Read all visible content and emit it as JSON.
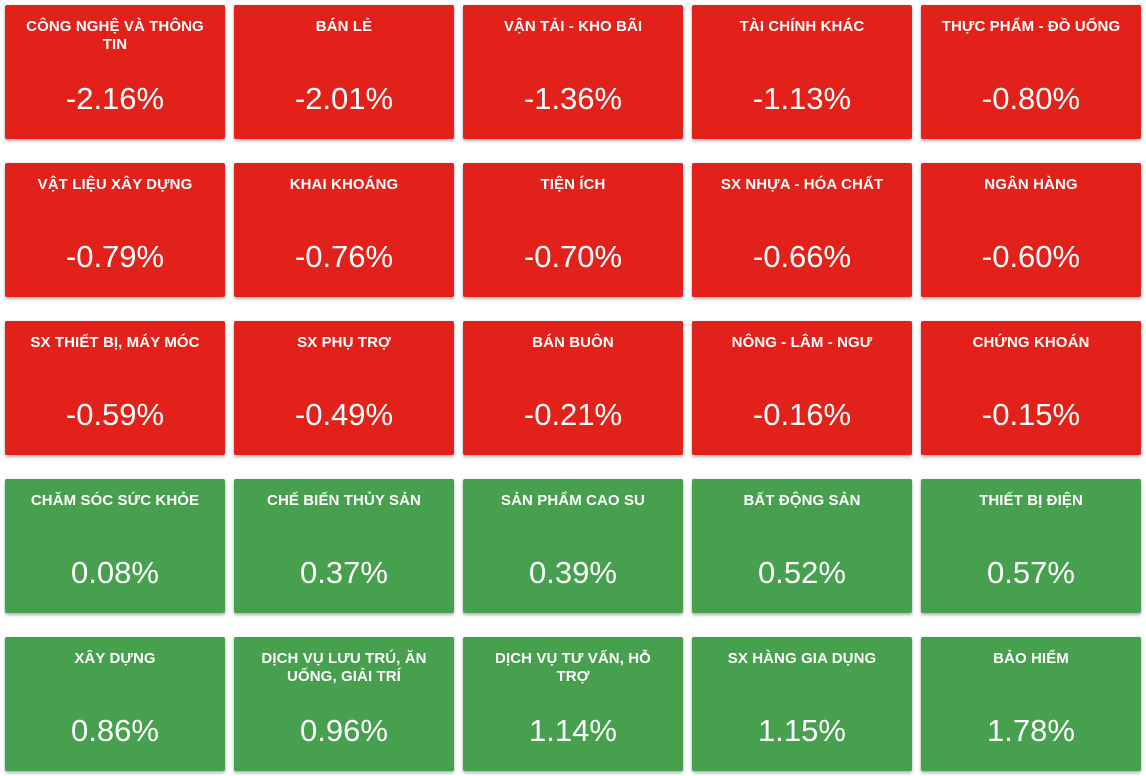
{
  "board": {
    "columns": 5,
    "rows": 5,
    "text_color": "#ffffff",
    "tile_colors": {
      "negative": "#e2221a",
      "positive": "#46a04e"
    }
  },
  "chart_data": {
    "type": "heatmap",
    "unit": "%",
    "legend_position": "none",
    "layout_hint": "5x5 tile grid, sorted ascending by percent change; red = decline, green = advance",
    "sectors": [
      {
        "label": "CÔNG NGHỆ VÀ THÔNG TIN",
        "value": -2.16,
        "display": "-2.16%",
        "direction": "down"
      },
      {
        "label": "BÁN LẺ",
        "value": -2.01,
        "display": "-2.01%",
        "direction": "down"
      },
      {
        "label": "VẬN TẢI - KHO BÃI",
        "value": -1.36,
        "display": "-1.36%",
        "direction": "down"
      },
      {
        "label": "TÀI CHÍNH KHÁC",
        "value": -1.13,
        "display": "-1.13%",
        "direction": "down"
      },
      {
        "label": "THỰC PHẨM - ĐỒ UỐNG",
        "value": -0.8,
        "display": "-0.80%",
        "direction": "down"
      },
      {
        "label": "VẬT LIỆU XÂY DỰNG",
        "value": -0.79,
        "display": "-0.79%",
        "direction": "down"
      },
      {
        "label": "KHAI KHOÁNG",
        "value": -0.76,
        "display": "-0.76%",
        "direction": "down"
      },
      {
        "label": "TIỆN ÍCH",
        "value": -0.7,
        "display": "-0.70%",
        "direction": "down"
      },
      {
        "label": "SX NHỰA - HÓA CHẤT",
        "value": -0.66,
        "display": "-0.66%",
        "direction": "down"
      },
      {
        "label": "NGÂN HÀNG",
        "value": -0.6,
        "display": "-0.60%",
        "direction": "down"
      },
      {
        "label": "SX THIẾT BỊ, MÁY MÓC",
        "value": -0.59,
        "display": "-0.59%",
        "direction": "down"
      },
      {
        "label": "SX PHỤ TRỢ",
        "value": -0.49,
        "display": "-0.49%",
        "direction": "down"
      },
      {
        "label": "BÁN BUÔN",
        "value": -0.21,
        "display": "-0.21%",
        "direction": "down"
      },
      {
        "label": "NÔNG - LÂM - NGƯ",
        "value": -0.16,
        "display": "-0.16%",
        "direction": "down"
      },
      {
        "label": "CHỨNG KHOÁN",
        "value": -0.15,
        "display": "-0.15%",
        "direction": "down"
      },
      {
        "label": "CHĂM SÓC SỨC KHỎE",
        "value": 0.08,
        "display": "0.08%",
        "direction": "up"
      },
      {
        "label": "CHẾ BIẾN THỦY SẢN",
        "value": 0.37,
        "display": "0.37%",
        "direction": "up"
      },
      {
        "label": "SẢN PHẨM CAO SU",
        "value": 0.39,
        "display": "0.39%",
        "direction": "up"
      },
      {
        "label": "BẤT ĐỘNG SẢN",
        "value": 0.52,
        "display": "0.52%",
        "direction": "up"
      },
      {
        "label": "THIẾT BỊ ĐIỆN",
        "value": 0.57,
        "display": "0.57%",
        "direction": "up"
      },
      {
        "label": "XÂY DỰNG",
        "value": 0.86,
        "display": "0.86%",
        "direction": "up"
      },
      {
        "label": "DỊCH VỤ LƯU TRÚ, ĂN UỐNG, GIẢI TRÍ",
        "value": 0.96,
        "display": "0.96%",
        "direction": "up"
      },
      {
        "label": "DỊCH VỤ TƯ VẤN, HỖ TRỢ",
        "value": 1.14,
        "display": "1.14%",
        "direction": "up"
      },
      {
        "label": "SX HÀNG GIA DỤNG",
        "value": 1.15,
        "display": "1.15%",
        "direction": "up"
      },
      {
        "label": "BẢO HIỂM",
        "value": 1.78,
        "display": "1.78%",
        "direction": "up"
      }
    ]
  }
}
